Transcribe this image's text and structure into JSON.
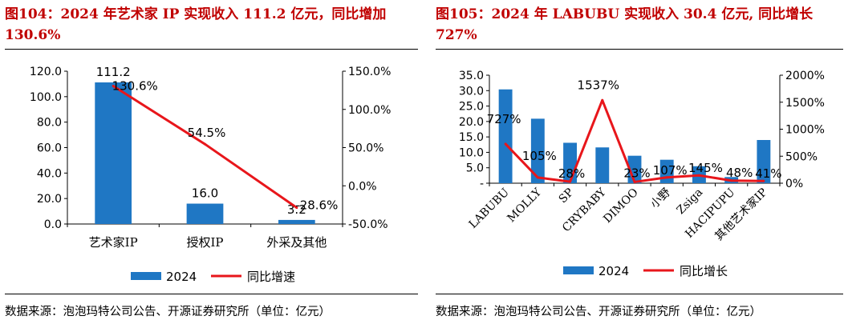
{
  "figures": [
    {
      "title": "图104：2024 年艺术家 IP 实现收入 111.2 亿元，同比增加 130.6%",
      "source": "数据来源：泡泡玛特公司公告、开源证券研究所（单位：亿元）"
    },
    {
      "title": "图105：2024 年 LABUBU 实现收入 30.4 亿元, 同比增长 727%",
      "source": "数据来源：泡泡玛特公司公告、开源证券研究所（单位：亿元）"
    }
  ],
  "chart_data": [
    {
      "type": "bar",
      "categories": [
        "艺术家IP",
        "授权IP",
        "外采及其他"
      ],
      "series": [
        {
          "name": "2024",
          "type": "bar",
          "axis": "left",
          "values": [
            111.2,
            16.0,
            3.2
          ],
          "labels": [
            "111.2",
            "16.0",
            "3.2"
          ]
        },
        {
          "name": "同比增速",
          "type": "line",
          "axis": "right",
          "values": [
            130.6,
            54.5,
            -28.6
          ],
          "labels": [
            "130.6%",
            "54.5%",
            "-28.6%"
          ]
        }
      ],
      "yleft": {
        "min": 0,
        "max": 120,
        "ticks": [
          "0.0",
          "20.0",
          "40.0",
          "60.0",
          "80.0",
          "100.0",
          "120.0"
        ]
      },
      "yright": {
        "min": -50,
        "max": 150,
        "ticks": [
          "-50.0%",
          "0.0%",
          "50.0%",
          "100.0%",
          "150.0%"
        ]
      },
      "legend": "bottom",
      "colors": {
        "bar": "#1f77c4",
        "line": "#e8161b"
      }
    },
    {
      "type": "bar",
      "categories": [
        "LABUBU",
        "MOLLY",
        "SP",
        "CRYBABY",
        "DIMOO",
        "小野",
        "Zsiga",
        "HACIPUPU",
        "其他艺术家IP"
      ],
      "series": [
        {
          "name": "2024",
          "type": "bar",
          "axis": "left",
          "values": [
            30.4,
            20.9,
            13.1,
            11.6,
            8.9,
            7.6,
            5.5,
            2.0,
            14.0
          ]
        },
        {
          "name": "同比增长",
          "type": "line",
          "axis": "right",
          "values": [
            727,
            105,
            28,
            1537,
            23,
            107,
            145,
            48,
            41
          ],
          "labels": [
            "727%",
            "105%",
            "28%",
            "1537%",
            "23%",
            "107%",
            "145%",
            "48%",
            "41%"
          ]
        }
      ],
      "yleft": {
        "min": 0,
        "max": 35,
        "ticks": [
          "-",
          "5.0",
          "10.0",
          "15.0",
          "20.0",
          "25.0",
          "30.0",
          "35.0"
        ]
      },
      "yright": {
        "min": 0,
        "max": 2000,
        "ticks": [
          "0%",
          "500%",
          "1000%",
          "1500%",
          "2000%"
        ]
      },
      "legend": "bottom",
      "colors": {
        "bar": "#1f77c4",
        "line": "#e8161b"
      }
    }
  ]
}
